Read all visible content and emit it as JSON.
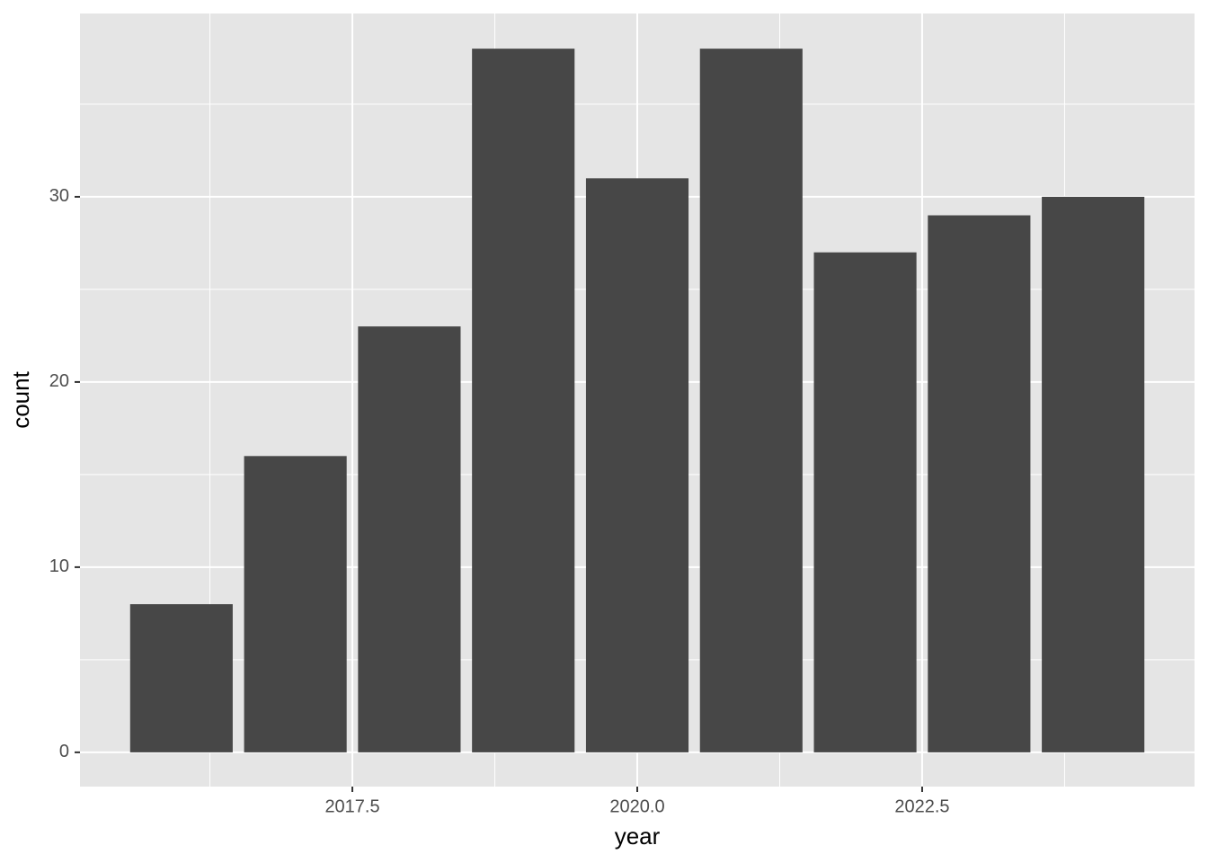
{
  "chart_data": {
    "type": "bar",
    "x": [
      2016,
      2017,
      2018,
      2019,
      2020,
      2021,
      2022,
      2023,
      2024
    ],
    "values": [
      8,
      16,
      23,
      38,
      31,
      38,
      27,
      29,
      30
    ],
    "color": "#474747",
    "bar_width": 0.9,
    "xlabel": "year",
    "ylabel": "count",
    "xlim": [
      2015.11,
      2024.89
    ],
    "ylim": [
      -1.85,
      39.9
    ],
    "xticks": [
      2017.5,
      {
        "value": 2020,
        "label": "2020.0"
      },
      2022.5
    ],
    "yticks": [
      0,
      10,
      20,
      30
    ],
    "xminorticks": [
      2016.25,
      2018.75,
      2021.25,
      2023.75
    ],
    "yminorticks": [
      5,
      15,
      25,
      35
    ],
    "grid": true
  }
}
